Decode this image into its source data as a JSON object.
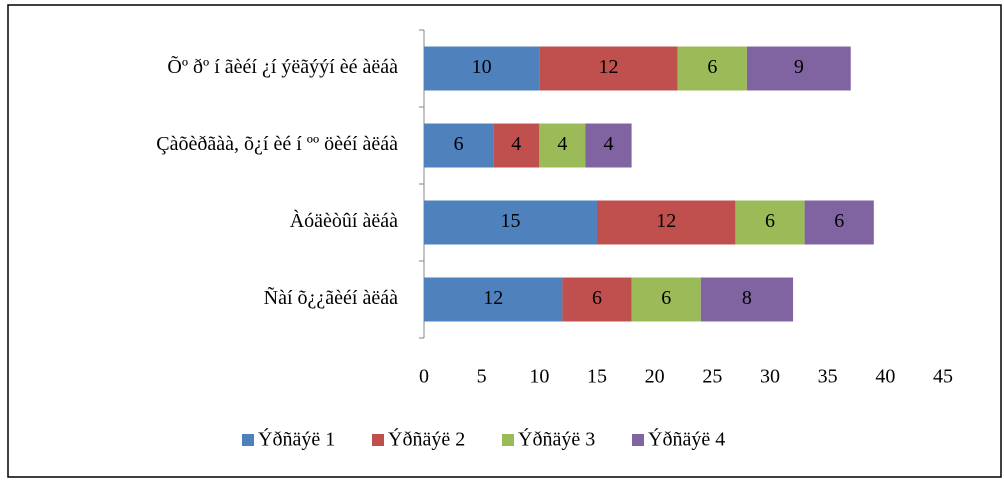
{
  "chart_data": {
    "type": "stacked-bar-horizontal",
    "categories": [
      "Õº ðº í ãèéí ¿í ýëãýýí èé àëáà",
      "Çàõèðãàà, õ¿í èé í ºº öèéí àëáà",
      "Àóäèòûí àëáà",
      "Ñàí õ¿¿ãèéí àëáà"
    ],
    "series": [
      {
        "name": "Ýðñäýë 1",
        "color": "#4f81bd",
        "values": [
          10,
          6,
          15,
          12
        ]
      },
      {
        "name": "Ýðñäýë 2",
        "color": "#c0504d",
        "values": [
          12,
          4,
          12,
          6
        ]
      },
      {
        "name": "Ýðñäýë 3",
        "color": "#9bbb59",
        "values": [
          6,
          4,
          6,
          6
        ]
      },
      {
        "name": "Ýðñäýë 4",
        "color": "#8064a2",
        "values": [
          9,
          4,
          6,
          8
        ]
      }
    ],
    "xlim": [
      0,
      45
    ],
    "xticks": [
      0,
      5,
      10,
      15,
      20,
      25,
      30,
      35,
      40,
      45
    ],
    "legend": "bottom"
  }
}
